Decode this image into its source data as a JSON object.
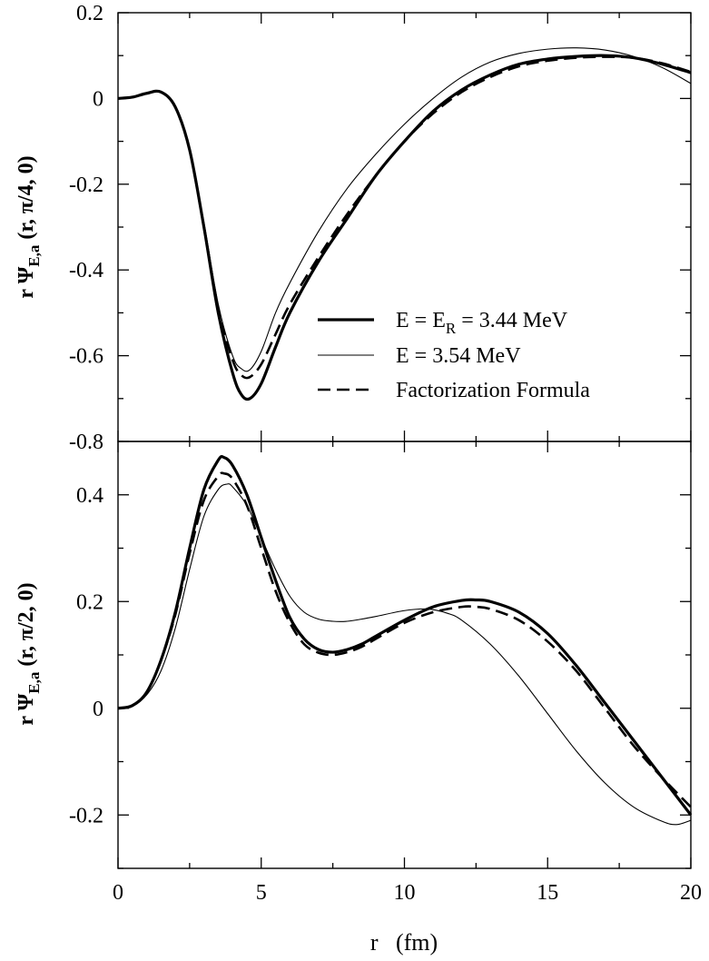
{
  "chart_data": [
    {
      "type": "line",
      "panel": "top",
      "ylabel": {
        "prefix": "r Ψ",
        "sub": "E,a",
        "suffix": " (r, π/4, 0)"
      },
      "xlim": [
        0,
        20
      ],
      "ylim": [
        -0.8,
        0.2
      ],
      "yticks": [
        {
          "v": -0.8,
          "label": "-0.8"
        },
        {
          "v": -0.6,
          "label": "-0.6"
        },
        {
          "v": -0.4,
          "label": "-0.4"
        },
        {
          "v": -0.2,
          "label": "-0.2"
        },
        {
          "v": 0,
          "label": "0"
        },
        {
          "v": 0.2,
          "label": "0.2"
        }
      ],
      "legend": {
        "placement": "lower-right",
        "entries": [
          {
            "series": "E = E_R = 3.44 MeV",
            "pre": "E = E",
            "sub": "R",
            "post": " = 3.44 MeV",
            "style": "thick"
          },
          {
            "series": "E = 3.54 MeV",
            "pre": "E = 3.54 MeV",
            "sub": "",
            "post": "",
            "style": "thin"
          },
          {
            "series": "Factorization Formula",
            "pre": "Factorization Formula",
            "sub": "",
            "post": "",
            "style": "dashed"
          }
        ]
      },
      "series": [
        {
          "name": "E = E_R = 3.44 MeV",
          "style": "thick",
          "x": [
            0,
            0.5,
            1,
            1.5,
            2,
            2.5,
            3,
            3.5,
            4,
            4.3,
            4.6,
            5,
            5.5,
            6,
            7,
            8,
            9,
            10,
            11,
            12,
            13,
            14,
            15,
            16,
            17,
            18,
            19,
            20
          ],
          "y": [
            0,
            0.003,
            0.012,
            0.015,
            -0.02,
            -0.12,
            -0.3,
            -0.5,
            -0.64,
            -0.69,
            -0.7,
            -0.665,
            -0.58,
            -0.5,
            -0.38,
            -0.28,
            -0.18,
            -0.1,
            -0.03,
            0.02,
            0.055,
            0.08,
            0.092,
            0.098,
            0.1,
            0.095,
            0.08,
            0.06
          ]
        },
        {
          "name": "E = 3.54 MeV",
          "style": "thin",
          "x": [
            0,
            0.5,
            1,
            1.5,
            2,
            2.5,
            3,
            3.5,
            4,
            4.3,
            4.6,
            5,
            5.5,
            6,
            7,
            8,
            9,
            10,
            11,
            12,
            13,
            14,
            15,
            16,
            17,
            18,
            19,
            20
          ],
          "y": [
            0,
            0.003,
            0.012,
            0.014,
            -0.02,
            -0.12,
            -0.29,
            -0.48,
            -0.6,
            -0.63,
            -0.633,
            -0.59,
            -0.5,
            -0.43,
            -0.31,
            -0.21,
            -0.13,
            -0.06,
            0.0,
            0.05,
            0.085,
            0.105,
            0.115,
            0.118,
            0.113,
            0.098,
            0.072,
            0.035
          ]
        },
        {
          "name": "Factorization Formula",
          "style": "dashed",
          "x": [
            0,
            0.5,
            1,
            1.5,
            2,
            2.5,
            3,
            3.5,
            4,
            4.3,
            4.6,
            5,
            5.5,
            6,
            7,
            8,
            9,
            10,
            11,
            12,
            13,
            14,
            15,
            16,
            17,
            18,
            19,
            20
          ],
          "y": [
            0,
            0.003,
            0.012,
            0.015,
            -0.02,
            -0.12,
            -0.3,
            -0.49,
            -0.61,
            -0.645,
            -0.65,
            -0.62,
            -0.55,
            -0.48,
            -0.37,
            -0.27,
            -0.18,
            -0.1,
            -0.035,
            0.015,
            0.05,
            0.075,
            0.088,
            0.095,
            0.097,
            0.095,
            0.082,
            0.062
          ]
        }
      ]
    },
    {
      "type": "line",
      "panel": "bottom",
      "ylabel": {
        "prefix": "r Ψ",
        "sub": "E,a",
        "suffix": " (r, π/2, 0)"
      },
      "xlabel": "r   (fm)",
      "xlim": [
        0,
        20
      ],
      "ylim": [
        -0.3,
        0.5
      ],
      "xticks": [
        {
          "v": 0,
          "label": "0"
        },
        {
          "v": 5,
          "label": "5"
        },
        {
          "v": 10,
          "label": "10"
        },
        {
          "v": 15,
          "label": "15"
        },
        {
          "v": 20,
          "label": "20"
        }
      ],
      "yticks": [
        {
          "v": -0.2,
          "label": "-0.2"
        },
        {
          "v": 0,
          "label": "0"
        },
        {
          "v": 0.2,
          "label": "0.2"
        },
        {
          "v": 0.4,
          "label": "0.4"
        }
      ],
      "series": [
        {
          "name": "E = E_R = 3.44 MeV",
          "style": "thick",
          "x": [
            0,
            0.5,
            1,
            1.5,
            2,
            2.5,
            3,
            3.5,
            3.7,
            4,
            4.5,
            5,
            5.5,
            6,
            6.5,
            7,
            7.5,
            8,
            8.5,
            9,
            10,
            11,
            12,
            12.5,
            13,
            14,
            15,
            16,
            17,
            18,
            19,
            20
          ],
          "y": [
            0,
            0.005,
            0.03,
            0.09,
            0.18,
            0.3,
            0.41,
            0.465,
            0.47,
            0.455,
            0.4,
            0.32,
            0.24,
            0.17,
            0.13,
            0.11,
            0.105,
            0.11,
            0.12,
            0.135,
            0.165,
            0.19,
            0.202,
            0.203,
            0.2,
            0.18,
            0.14,
            0.08,
            0.01,
            -0.06,
            -0.13,
            -0.2
          ]
        },
        {
          "name": "E = 3.54 MeV",
          "style": "thin",
          "x": [
            0,
            0.5,
            1,
            1.5,
            2,
            2.5,
            3,
            3.5,
            3.8,
            4,
            4.5,
            5,
            5.5,
            6,
            6.5,
            7,
            7.5,
            8,
            8.5,
            9,
            10,
            10.8,
            11.5,
            12,
            13,
            14,
            15,
            16,
            17,
            18,
            19,
            19.5,
            20
          ],
          "y": [
            0,
            0.004,
            0.025,
            0.07,
            0.15,
            0.26,
            0.36,
            0.41,
            0.42,
            0.415,
            0.38,
            0.32,
            0.26,
            0.21,
            0.18,
            0.167,
            0.163,
            0.163,
            0.167,
            0.172,
            0.183,
            0.186,
            0.178,
            0.165,
            0.12,
            0.06,
            -0.01,
            -0.08,
            -0.14,
            -0.185,
            -0.212,
            -0.218,
            -0.21
          ]
        },
        {
          "name": "Factorization Formula",
          "style": "dashed",
          "x": [
            0,
            0.5,
            1,
            1.5,
            2,
            2.5,
            3,
            3.5,
            3.7,
            4,
            4.5,
            5,
            5.5,
            6,
            6.5,
            7,
            7.5,
            8,
            8.5,
            9,
            10,
            11,
            12,
            12.5,
            13,
            14,
            15,
            16,
            17,
            18,
            19,
            20
          ],
          "y": [
            0,
            0.005,
            0.03,
            0.09,
            0.175,
            0.29,
            0.39,
            0.435,
            0.44,
            0.43,
            0.38,
            0.3,
            0.22,
            0.16,
            0.12,
            0.104,
            0.1,
            0.105,
            0.115,
            0.13,
            0.16,
            0.18,
            0.19,
            0.19,
            0.186,
            0.165,
            0.125,
            0.07,
            0.0,
            -0.07,
            -0.13,
            -0.185
          ]
        }
      ]
    }
  ]
}
